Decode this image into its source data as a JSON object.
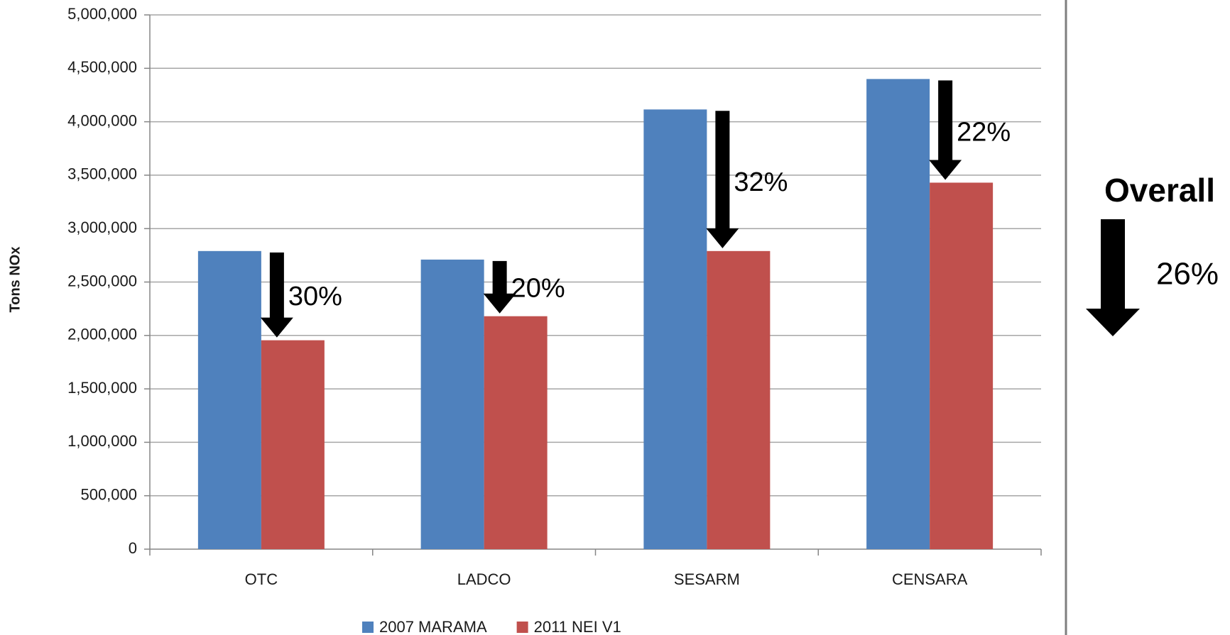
{
  "chart_data": {
    "type": "bar",
    "y_label": "Tons NOx",
    "categories": [
      "OTC",
      "LADCO",
      "SESARM",
      "CENSARA"
    ],
    "series": [
      {
        "name": "2007 MARAMA",
        "color": "#4f81bd",
        "values": [
          2790000,
          2710000,
          4115000,
          4400000
        ]
      },
      {
        "name": "2011 NEI V1",
        "color": "#c0504d",
        "values": [
          1955000,
          2180000,
          2790000,
          3430000
        ]
      }
    ],
    "annotations": [
      "30%",
      "20%",
      "32%",
      "22%"
    ],
    "overall_label": "Overall",
    "overall_value": "26%",
    "ylim": [
      0,
      5000000
    ],
    "yticks": [
      0,
      {
        "value": 500000,
        "label": "500,000"
      },
      {
        "value": 1000000,
        "label": "1,000,000"
      },
      {
        "value": 1500000,
        "label": "1,500,000"
      },
      {
        "value": 2000000,
        "label": "2,000,000"
      },
      {
        "value": 2500000,
        "label": "2,500,000"
      },
      {
        "value": 3000000,
        "label": "3,000,000"
      },
      {
        "value": 3500000,
        "label": "3,500,000"
      },
      {
        "value": 4000000,
        "label": "4,000,000"
      },
      {
        "value": 4500000,
        "label": "4,500,000"
      },
      {
        "value": 5000000,
        "label": "5,000,000"
      }
    ],
    "grid": true,
    "legend": "bottom"
  }
}
